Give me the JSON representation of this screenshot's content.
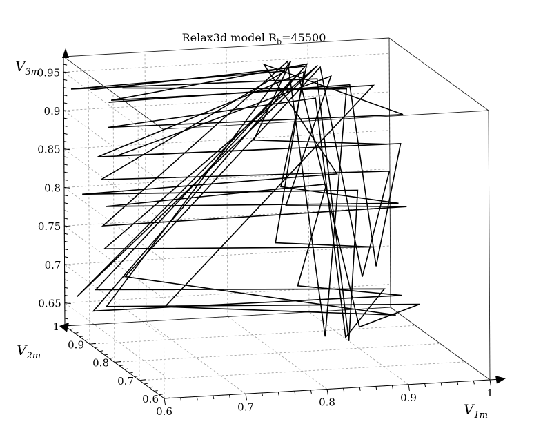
{
  "chart_data": {
    "type": "line",
    "projection": "3d",
    "title": "Relax3d model R",
    "title_subscript": "b",
    "title_suffix": "=45500",
    "xlabel": "V",
    "xlabel_subscript": "1m",
    "ylabel": "V",
    "ylabel_subscript": "2m",
    "zlabel": "V",
    "zlabel_subscript": "3m",
    "xlim": [
      0.6,
      1.0
    ],
    "ylim": [
      0.6,
      1.0
    ],
    "zlim": [
      0.62,
      0.97
    ],
    "x_ticks": [
      "0.6",
      "0.7",
      "0.8",
      "0.9",
      "1"
    ],
    "y_ticks": [
      "0.6",
      "0.7",
      "0.8",
      "0.9",
      "1"
    ],
    "z_ticks": [
      "0.65",
      "0.7",
      "0.75",
      "0.8",
      "0.85",
      "0.9",
      "0.95"
    ],
    "grid": true,
    "legend": "none",
    "line_color": "#000000",
    "series": [
      {
        "points": [
          [
            0.62,
            0.96,
            0.935
          ],
          [
            0.88,
            0.94,
            0.955
          ],
          [
            0.86,
            0.98,
            0.79
          ],
          [
            0.98,
            0.9,
            0.78
          ],
          [
            0.63,
            0.93,
            0.79
          ],
          [
            0.91,
            0.96,
            0.795
          ],
          [
            0.88,
            0.98,
            0.66
          ],
          [
            0.99,
            0.92,
            0.655
          ],
          [
            0.62,
            0.95,
            0.65
          ],
          [
            0.89,
            0.97,
            0.95
          ],
          [
            0.64,
            0.94,
            0.925
          ],
          [
            0.95,
            0.9,
            0.935
          ],
          [
            0.72,
            0.99,
            0.64
          ],
          [
            0.97,
            0.88,
            0.64
          ],
          [
            0.65,
            0.92,
            0.7
          ],
          [
            0.9,
            0.95,
            0.95
          ],
          [
            0.92,
            0.85,
            0.7
          ],
          [
            0.96,
            0.87,
            0.83
          ],
          [
            0.63,
            0.95,
            0.82
          ],
          [
            0.86,
            0.96,
            0.945
          ],
          [
            0.6,
            0.97,
            0.935
          ],
          [
            0.89,
            0.93,
            0.94
          ],
          [
            0.9,
            0.84,
            0.62
          ],
          [
            0.93,
            0.9,
            0.8
          ],
          [
            0.61,
            0.96,
            0.8
          ],
          [
            0.92,
            0.95,
            0.81
          ],
          [
            0.84,
            0.98,
            0.95
          ],
          [
            0.98,
            0.88,
            0.9
          ],
          [
            0.63,
            0.92,
            0.895
          ],
          [
            0.9,
            0.97,
            0.905
          ],
          [
            0.89,
            0.82,
            0.63
          ],
          [
            0.95,
            0.86,
            0.68
          ],
          [
            0.62,
            0.94,
            0.68
          ],
          [
            0.87,
            0.96,
            0.935
          ]
        ]
      },
      {
        "points": [
          [
            0.64,
            0.95,
            0.92
          ],
          [
            0.93,
            0.93,
            0.93
          ],
          [
            0.94,
            0.86,
            0.71
          ],
          [
            0.98,
            0.89,
            0.86
          ],
          [
            0.62,
            0.93,
            0.855
          ],
          [
            0.88,
            0.95,
            0.945
          ],
          [
            0.85,
            0.97,
            0.72
          ],
          [
            0.95,
            0.9,
            0.725
          ],
          [
            0.64,
            0.97,
            0.725
          ],
          [
            0.9,
            0.96,
            0.95
          ],
          [
            0.6,
            0.95,
            0.67
          ],
          [
            0.87,
            0.94,
            0.945
          ],
          [
            0.91,
            0.83,
            0.64
          ],
          [
            0.99,
            0.85,
            0.66
          ],
          [
            0.63,
            0.93,
            0.66
          ],
          [
            0.87,
            0.97,
            0.955
          ],
          [
            0.83,
            0.99,
            0.85
          ],
          [
            0.97,
            0.91,
            0.855
          ],
          [
            0.65,
            0.95,
            0.85
          ],
          [
            0.91,
            0.94,
            0.94
          ],
          [
            0.86,
            0.96,
            0.77
          ],
          [
            0.99,
            0.9,
            0.775
          ],
          [
            0.62,
            0.91,
            0.77
          ],
          [
            0.86,
            0.95,
            0.96
          ],
          [
            0.88,
            0.87,
            0.62
          ],
          [
            0.92,
            0.91,
            0.93
          ],
          [
            0.66,
            0.96,
            0.935
          ],
          [
            0.93,
            0.97,
            0.915
          ]
        ]
      }
    ]
  }
}
